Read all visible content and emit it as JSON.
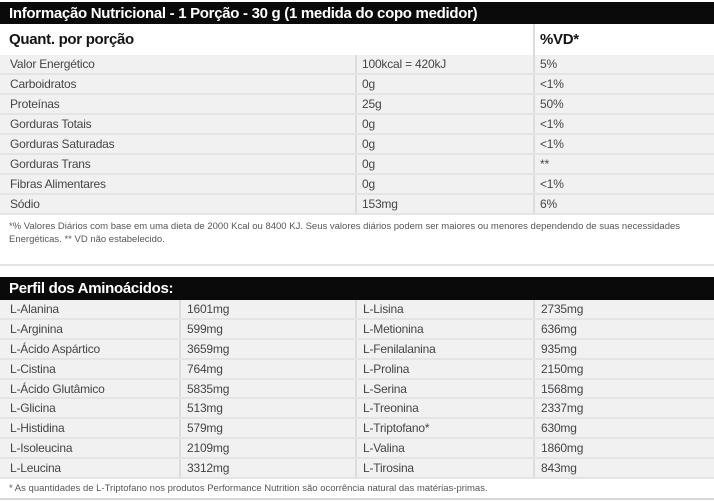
{
  "header": {
    "title": "Informação Nutricional - 1 Porção - 30 g (1 medida do copo medidor)"
  },
  "nutrition_table": {
    "col_header": "Quant. por porção",
    "vd_header": "%VD*",
    "rows": [
      {
        "name": "Valor Energético",
        "qty": "100kcal = 420kJ",
        "vd": "5%"
      },
      {
        "name": "Carboidratos",
        "qty": "0g",
        "vd": "<1%"
      },
      {
        "name": "Proteínas",
        "qty": "25g",
        "vd": "50%"
      },
      {
        "name": "Gorduras Totais",
        "qty": "0g",
        "vd": "<1%"
      },
      {
        "name": "Gorduras Saturadas",
        "qty": "0g",
        "vd": "<1%"
      },
      {
        "name": "Gorduras Trans",
        "qty": "0g",
        "vd": "**"
      },
      {
        "name": "Fibras Alimentares",
        "qty": "0g",
        "vd": "<1%"
      },
      {
        "name": "Sódio",
        "qty": "153mg",
        "vd": "6%"
      }
    ],
    "footnote": "*% Valores Diários com base em uma dieta de 2000 Kcal ou 8400 KJ. Seus valores diários podem ser maiores ou menores dependendo de suas necessidades Energéticas. ** VD não estabelecido."
  },
  "amino_section": {
    "title": "Perfil dos Aminoácidos:",
    "rows": [
      {
        "left_name": "L-Alanina",
        "left_value": "1601mg",
        "right_name": "L-Lisina",
        "right_value": "2735mg"
      },
      {
        "left_name": "L-Arginina",
        "left_value": "599mg",
        "right_name": "L-Metionina",
        "right_value": "636mg"
      },
      {
        "left_name": "L-Ácido Aspártico",
        "left_value": "3659mg",
        "right_name": "L-Fenilalanina",
        "right_value": "935mg"
      },
      {
        "left_name": "L-Cistina",
        "left_value": "764mg",
        "right_name": "L-Prolina",
        "right_value": "2150mg"
      },
      {
        "left_name": "L-Ácido Glutâmico",
        "left_value": "5835mg",
        "right_name": "L-Serina",
        "right_value": "1568mg"
      },
      {
        "left_name": "L-Glicina",
        "left_value": "513mg",
        "right_name": "L-Treonina",
        "right_value": "2337mg"
      },
      {
        "left_name": "L-Histidina",
        "left_value": "579mg",
        "right_name": "L-Triptofano*",
        "right_value": "630mg"
      },
      {
        "left_name": "L-Isoleucina",
        "left_value": "2109mg",
        "right_name": "L-Valina",
        "right_value": "1860mg"
      },
      {
        "left_name": "L-Leucina",
        "left_value": "3312mg",
        "right_name": "L-Tirosina",
        "right_value": "843mg"
      }
    ],
    "footnote": "* As quantidades de L-Triptofano nos produtos Performance Nutrition são ocorrência natural das matérias-primas."
  },
  "colors": {
    "bar_background": "#0a0a0a",
    "bar_text": "#ffffff",
    "row_background": "#f1f1f2",
    "row_separator": "#e4e4e6",
    "column_border": "#dcdcde",
    "body_text": "#454549",
    "footnote_text": "#56565a"
  }
}
